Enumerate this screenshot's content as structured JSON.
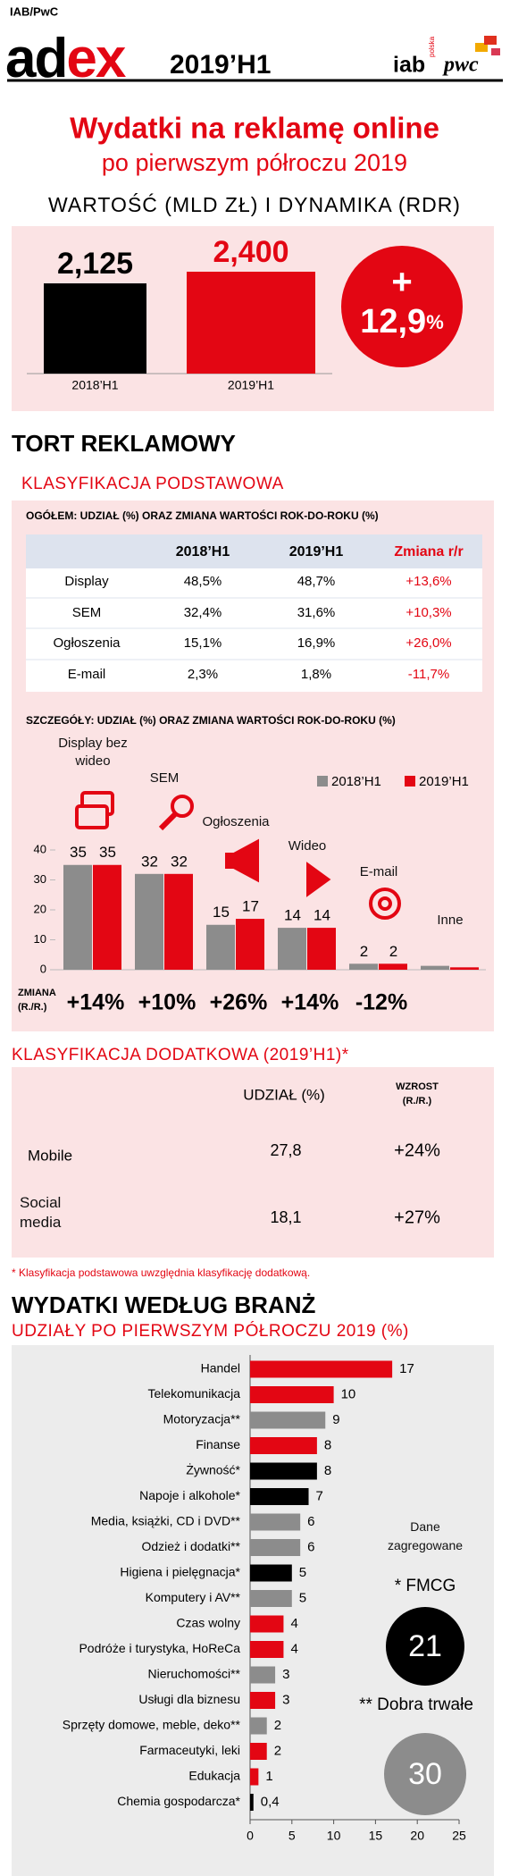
{
  "header": {
    "brand_small": "IAB/PwC",
    "brand_black": "ad",
    "brand_red": "ex",
    "period": "2019’H1",
    "logo_iab": "iab",
    "logo_iab_sub": "polska",
    "logo_pwc": "pwc"
  },
  "title": "Wydatki na reklamę online",
  "subtitle": "po pierwszym półroczu 2019",
  "growth": {
    "sign": "+",
    "value": "12,9",
    "unit": "%"
  },
  "section_pie": "TORT REKLAMOWY",
  "basic_classification": "KLASYFIKACJA PODSTAWOWA",
  "overall_title": "OGÓŁEM:  UDZIAŁ (%) ORAZ ZMIANA WARTOŚCI ROK-DO-ROKU (%)",
  "table": {
    "header": [
      "2018’H1",
      "2019’H1",
      "Zmiana r/r"
    ],
    "rows": [
      [
        "Display",
        "48,5%",
        "48,7%",
        "+13,6%"
      ],
      [
        "SEM",
        "32,4%",
        "31,6%",
        "+10,3%"
      ],
      [
        "Ogłoszenia",
        "15,1%",
        "16,9%",
        "+26,0%"
      ],
      [
        "E-mail",
        "2,3%",
        "1,8%",
        "-11,7%"
      ]
    ]
  },
  "change_label": [
    "ZMIANA",
    "(R./R.)"
  ],
  "extra_classification": "KLASYFIKACJA DODATKOWA (2019’H1)*",
  "extra_table": {
    "share_header": "UDZIAŁ (%)",
    "growth_header": [
      "WZROST",
      "(R./R.)"
    ],
    "rows": [
      {
        "name": "Mobile",
        "share": "27,8",
        "growth": "+24%"
      },
      {
        "name": "Social media",
        "share": "18,1",
        "growth": "+27%"
      }
    ]
  },
  "footnote": "* Klasyfikacja podstawowa uwzględnia klasyfikację dodatkową.",
  "aggregated": {
    "label": "Dane zagregowane",
    "fmcg_label": "* FMCG",
    "fmcg_value": "21",
    "durables_label": "** Dobra trwałe",
    "durables_value": "30"
  },
  "chart_data": [
    {
      "type": "bar",
      "title": "WARTOŚĆ (MLD ZŁ) I DYNAMIKA (RDR)",
      "categories": [
        "2018’H1",
        "2019’H1"
      ],
      "values": [
        2.125,
        2.4
      ],
      "value_labels": [
        "2,125",
        "2,400"
      ],
      "colors": [
        "#000000",
        "#e30613"
      ]
    },
    {
      "type": "grouped_bar",
      "title": "SZCZEGÓŁY:  UDZIAŁ (%) ORAZ ZMIANA WARTOŚCI ROK-DO-ROKU (%)",
      "categories": [
        "Display bez wideo",
        "SEM",
        "Ogłoszenia",
        "Wideo",
        "E-mail",
        "Inne"
      ],
      "series": [
        {
          "name": "2018’H1",
          "color": "#8c8c8c",
          "values": [
            35,
            32,
            15,
            14,
            2,
            1.3
          ],
          "value_labels": [
            "35",
            "32",
            "15",
            "14",
            "2",
            null
          ]
        },
        {
          "name": "2019’H1",
          "color": "#e30613",
          "values": [
            35,
            32,
            17,
            14,
            2,
            0.8
          ],
          "value_labels": [
            "35",
            "32",
            "17",
            "14",
            "2",
            null
          ]
        }
      ],
      "changes": [
        "+14%",
        "+10%",
        "+26%",
        "+14%",
        "-12%",
        null
      ],
      "ylim": [
        0,
        40
      ],
      "yticks": [
        0,
        10,
        20,
        30,
        40
      ]
    },
    {
      "type": "hbar",
      "title": "WYDATKI WEDŁUG BRANŻ",
      "subtitle": "UDZIAŁY PO PIERWSZYM PÓŁROCZU 2019 (%)",
      "categories": [
        "Handel",
        "Telekomunikacja",
        "Motoryzacja**",
        "Finanse",
        "Żywność*",
        "Napoje i alkohole*",
        "Media, książki, CD i DVD**",
        "Odzież i dodatki**",
        "Higiena i pielęgnacja*",
        "Komputery i AV**",
        "Czas wolny",
        "Podróże i turystyka, HoReCa",
        "Nieruchomości**",
        "Usługi dla biznesu",
        "Sprzęty domowe, meble, deko**",
        "Farmaceutyki, leki",
        "Edukacja",
        "Chemia gospodarcza*"
      ],
      "values": [
        17,
        10,
        9,
        8,
        8,
        7,
        6,
        6,
        5,
        5,
        4,
        4,
        3,
        3,
        2,
        2,
        1,
        0.4
      ],
      "value_labels": [
        "17",
        "10",
        "9",
        "8",
        "8",
        "7",
        "6",
        "6",
        "5",
        "5",
        "4",
        "4",
        "3",
        "3",
        "2",
        "2",
        "1",
        "0,4"
      ],
      "colors": [
        "#e30613",
        "#e30613",
        "#8c8c8c",
        "#e30613",
        "#000000",
        "#000000",
        "#8c8c8c",
        "#8c8c8c",
        "#000000",
        "#8c8c8c",
        "#e30613",
        "#e30613",
        "#8c8c8c",
        "#e30613",
        "#8c8c8c",
        "#e30613",
        "#e30613",
        "#000000"
      ],
      "xlim": [
        0,
        25
      ],
      "xticks": [
        0,
        5,
        10,
        15,
        20,
        25
      ]
    }
  ]
}
